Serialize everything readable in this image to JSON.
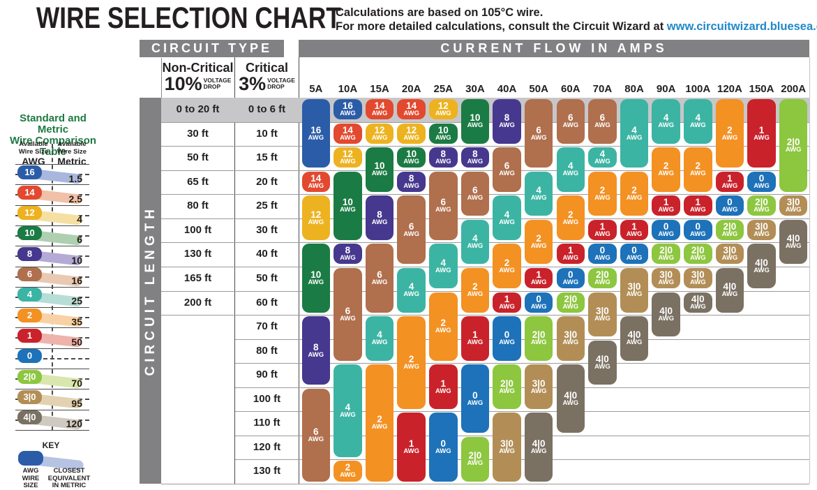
{
  "title": "WIRE SELECTION CHART",
  "note": {
    "line1": "Calculations are based on 105°C wire.",
    "line2_prefix": "For more detailed calculations, consult the Circuit Wizard at ",
    "link": "www.circuitwizard.bluesea.com",
    "link_color": "#2089c9"
  },
  "sidebar": {
    "title_line1": "Standard and Metric",
    "title_line2": "Wire Comparison Table",
    "title_color": "#1e7a43",
    "col1_header_line1": "Available",
    "col1_header_line2": "Wire Size",
    "col1_unit": "AWG",
    "col2_header_line1": "Available",
    "col2_header_line2": "Wire Size",
    "col2_unit": "Metric",
    "rows": [
      {
        "awg": "16",
        "metric": "1.5",
        "color": "#2b5ca8",
        "swash": "#a9b6dd"
      },
      {
        "awg": "14",
        "metric": "2.5",
        "color": "#e2492f",
        "swash": "#f0c0a8"
      },
      {
        "awg": "12",
        "metric": "4",
        "color": "#edb220",
        "swash": "#f6dfa2"
      },
      {
        "awg": "10",
        "metric": "6",
        "color": "#1b7b44",
        "swash": "#aed0b0"
      },
      {
        "awg": "8",
        "metric": "10",
        "color": "#46388e",
        "swash": "#b4aad6"
      },
      {
        "awg": "6",
        "metric": "16",
        "color": "#b06f4d",
        "swash": "#e9c9b2"
      },
      {
        "awg": "4",
        "metric": "25",
        "color": "#3cb4a4",
        "swash": "#b6ded6"
      },
      {
        "awg": "2",
        "metric": "35",
        "color": "#f39123",
        "swash": "#f8d2a4"
      },
      {
        "awg": "1",
        "metric": "50",
        "color": "#c9222b",
        "swash": "#eeb3ab"
      },
      {
        "awg": "0",
        "metric": "",
        "color": "#1d72b9",
        "swash": ""
      },
      {
        "awg": "2|0",
        "metric": "70",
        "color": "#8dc63f",
        "swash": "#d9e6ae"
      },
      {
        "awg": "3|0",
        "metric": "95",
        "color": "#b28e56",
        "swash": "#e3d2b2"
      },
      {
        "awg": "4|0",
        "metric": "120",
        "color": "#7a7163",
        "swash": "#cfcac1"
      }
    ],
    "key": {
      "label": "KEY",
      "pill_color": "#2b5ca8",
      "swash_color": "#b7c3e3",
      "pill_label_line1": "AWG",
      "pill_label_line2": "WIRE",
      "pill_label_line3": "SIZE",
      "swash_label_line1": "CLOSEST",
      "swash_label_line2": "EQUIVALENT",
      "swash_label_line3": "IN METRIC"
    }
  },
  "table": {
    "circuit_type_header": "CIRCUIT TYPE",
    "amps_header": "CURRENT FLOW IN AMPS",
    "noncritical_title": "Non-Critical",
    "noncritical_pct": "10%",
    "critical_title": "Critical",
    "critical_pct": "3%",
    "voltage_word": "VOLTAGE",
    "drop_word": "DROP",
    "circuit_length_label": "CIRCUIT LENGTH"
  },
  "chart_data": {
    "type": "table",
    "title": "WIRE SELECTION CHART",
    "x_axis_label": "CURRENT FLOW IN AMPS",
    "y_axis_label": "CIRCUIT LENGTH",
    "amp_columns": [
      "5A",
      "10A",
      "15A",
      "20A",
      "25A",
      "30A",
      "40A",
      "50A",
      "60A",
      "70A",
      "80A",
      "90A",
      "100A",
      "120A",
      "150A",
      "200A"
    ],
    "length_rows": [
      {
        "noncritical": "0 to 20 ft",
        "critical": "0 to 6 ft"
      },
      {
        "noncritical": "30 ft",
        "critical": "10 ft"
      },
      {
        "noncritical": "50 ft",
        "critical": "15 ft"
      },
      {
        "noncritical": "65 ft",
        "critical": "20 ft"
      },
      {
        "noncritical": "80 ft",
        "critical": "25 ft"
      },
      {
        "noncritical": "100 ft",
        "critical": "30 ft"
      },
      {
        "noncritical": "130 ft",
        "critical": "40 ft"
      },
      {
        "noncritical": "165 ft",
        "critical": "50 ft"
      },
      {
        "noncritical": "200 ft",
        "critical": "60 ft"
      },
      {
        "noncritical": "",
        "critical": "70 ft"
      },
      {
        "noncritical": "",
        "critical": "80 ft"
      },
      {
        "noncritical": "",
        "critical": "90 ft"
      },
      {
        "noncritical": "",
        "critical": "100 ft"
      },
      {
        "noncritical": "",
        "critical": "110 ft"
      },
      {
        "noncritical": "",
        "critical": "120 ft"
      },
      {
        "noncritical": "",
        "critical": "130 ft"
      }
    ],
    "awg_unit": "AWG",
    "awg_colors": {
      "16": "#2b5ca8",
      "14": "#e2492f",
      "12": "#edb220",
      "10": "#1b7b44",
      "8": "#46388e",
      "6": "#b06f4d",
      "4": "#3cb4a4",
      "2": "#f39123",
      "1": "#c9222b",
      "0": "#1d72b9",
      "2|0": "#8dc63f",
      "3|0": "#b28e56",
      "4|0": "#7a7163"
    },
    "recommended_awg": [
      {
        "amps": "5A",
        "pills": [
          {
            "awg": "16",
            "row_start": 1,
            "row_end": 3
          },
          {
            "awg": "14",
            "row_start": 4,
            "row_end": 4
          },
          {
            "awg": "12",
            "row_start": 5,
            "row_end": 6
          },
          {
            "awg": "10",
            "row_start": 7,
            "row_end": 9
          },
          {
            "awg": "8",
            "row_start": 10,
            "row_end": 12
          },
          {
            "awg": "6",
            "row_start": 13,
            "row_end": 16
          }
        ]
      },
      {
        "amps": "10A",
        "pills": [
          {
            "awg": "16",
            "row_start": 1,
            "row_end": 1
          },
          {
            "awg": "14",
            "row_start": 2,
            "row_end": 2
          },
          {
            "awg": "12",
            "row_start": 3,
            "row_end": 3
          },
          {
            "awg": "10",
            "row_start": 4,
            "row_end": 6
          },
          {
            "awg": "8",
            "row_start": 7,
            "row_end": 7
          },
          {
            "awg": "6",
            "row_start": 8,
            "row_end": 11
          },
          {
            "awg": "4",
            "row_start": 12,
            "row_end": 15
          },
          {
            "awg": "2",
            "row_start": 16,
            "row_end": 16
          }
        ]
      },
      {
        "amps": "15A",
        "pills": [
          {
            "awg": "14",
            "row_start": 1,
            "row_end": 1
          },
          {
            "awg": "12",
            "row_start": 2,
            "row_end": 2
          },
          {
            "awg": "10",
            "row_start": 3,
            "row_end": 4
          },
          {
            "awg": "8",
            "row_start": 5,
            "row_end": 6
          },
          {
            "awg": "6",
            "row_start": 7,
            "row_end": 9
          },
          {
            "awg": "4",
            "row_start": 10,
            "row_end": 11
          },
          {
            "awg": "2",
            "row_start": 12,
            "row_end": 16
          }
        ]
      },
      {
        "amps": "20A",
        "pills": [
          {
            "awg": "14",
            "row_start": 1,
            "row_end": 1
          },
          {
            "awg": "12",
            "row_start": 2,
            "row_end": 2
          },
          {
            "awg": "10",
            "row_start": 3,
            "row_end": 3
          },
          {
            "awg": "8",
            "row_start": 4,
            "row_end": 4
          },
          {
            "awg": "6",
            "row_start": 5,
            "row_end": 7
          },
          {
            "awg": "4",
            "row_start": 8,
            "row_end": 9
          },
          {
            "awg": "2",
            "row_start": 10,
            "row_end": 13
          },
          {
            "awg": "1",
            "row_start": 14,
            "row_end": 16
          }
        ]
      },
      {
        "amps": "25A",
        "pills": [
          {
            "awg": "12",
            "row_start": 1,
            "row_end": 1
          },
          {
            "awg": "10",
            "row_start": 2,
            "row_end": 2
          },
          {
            "awg": "8",
            "row_start": 3,
            "row_end": 3
          },
          {
            "awg": "6",
            "row_start": 4,
            "row_end": 6
          },
          {
            "awg": "4",
            "row_start": 7,
            "row_end": 8
          },
          {
            "awg": "2",
            "row_start": 9,
            "row_end": 11
          },
          {
            "awg": "1",
            "row_start": 12,
            "row_end": 13
          },
          {
            "awg": "0",
            "row_start": 14,
            "row_end": 16
          }
        ]
      },
      {
        "amps": "30A",
        "pills": [
          {
            "awg": "10",
            "row_start": 1,
            "row_end": 2
          },
          {
            "awg": "8",
            "row_start": 3,
            "row_end": 3
          },
          {
            "awg": "6",
            "row_start": 4,
            "row_end": 5
          },
          {
            "awg": "4",
            "row_start": 6,
            "row_end": 7
          },
          {
            "awg": "2",
            "row_start": 8,
            "row_end": 9
          },
          {
            "awg": "1",
            "row_start": 10,
            "row_end": 11
          },
          {
            "awg": "0",
            "row_start": 12,
            "row_end": 14
          },
          {
            "awg": "2|0",
            "row_start": 15,
            "row_end": 16
          }
        ]
      },
      {
        "amps": "40A",
        "pills": [
          {
            "awg": "8",
            "row_start": 1,
            "row_end": 2
          },
          {
            "awg": "6",
            "row_start": 3,
            "row_end": 4
          },
          {
            "awg": "4",
            "row_start": 5,
            "row_end": 6
          },
          {
            "awg": "2",
            "row_start": 7,
            "row_end": 8
          },
          {
            "awg": "1",
            "row_start": 9,
            "row_end": 9
          },
          {
            "awg": "0",
            "row_start": 10,
            "row_end": 11
          },
          {
            "awg": "2|0",
            "row_start": 12,
            "row_end": 13
          },
          {
            "awg": "3|0",
            "row_start": 14,
            "row_end": 16
          }
        ]
      },
      {
        "amps": "50A",
        "pills": [
          {
            "awg": "6",
            "row_start": 1,
            "row_end": 3
          },
          {
            "awg": "4",
            "row_start": 4,
            "row_end": 5
          },
          {
            "awg": "2",
            "row_start": 6,
            "row_end": 7
          },
          {
            "awg": "1",
            "row_start": 8,
            "row_end": 8
          },
          {
            "awg": "0",
            "row_start": 9,
            "row_end": 9
          },
          {
            "awg": "2|0",
            "row_start": 10,
            "row_end": 11
          },
          {
            "awg": "3|0",
            "row_start": 12,
            "row_end": 13
          },
          {
            "awg": "4|0",
            "row_start": 14,
            "row_end": 16
          }
        ]
      },
      {
        "amps": "60A",
        "pills": [
          {
            "awg": "6",
            "row_start": 1,
            "row_end": 2
          },
          {
            "awg": "4",
            "row_start": 3,
            "row_end": 4
          },
          {
            "awg": "2",
            "row_start": 5,
            "row_end": 6
          },
          {
            "awg": "1",
            "row_start": 7,
            "row_end": 7
          },
          {
            "awg": "0",
            "row_start": 8,
            "row_end": 8
          },
          {
            "awg": "2|0",
            "row_start": 9,
            "row_end": 9
          },
          {
            "awg": "3|0",
            "row_start": 10,
            "row_end": 11
          },
          {
            "awg": "4|0",
            "row_start": 12,
            "row_end": 14
          }
        ]
      },
      {
        "amps": "70A",
        "pills": [
          {
            "awg": "6",
            "row_start": 1,
            "row_end": 2
          },
          {
            "awg": "4",
            "row_start": 3,
            "row_end": 3
          },
          {
            "awg": "2",
            "row_start": 4,
            "row_end": 5
          },
          {
            "awg": "1",
            "row_start": 6,
            "row_end": 6
          },
          {
            "awg": "0",
            "row_start": 7,
            "row_end": 7
          },
          {
            "awg": "2|0",
            "row_start": 8,
            "row_end": 8
          },
          {
            "awg": "3|0",
            "row_start": 9,
            "row_end": 10
          },
          {
            "awg": "4|0",
            "row_start": 11,
            "row_end": 12
          }
        ]
      },
      {
        "amps": "80A",
        "pills": [
          {
            "awg": "4",
            "row_start": 1,
            "row_end": 3
          },
          {
            "awg": "2",
            "row_start": 4,
            "row_end": 5
          },
          {
            "awg": "1",
            "row_start": 6,
            "row_end": 6
          },
          {
            "awg": "0",
            "row_start": 7,
            "row_end": 7
          },
          {
            "awg": "3|0",
            "row_start": 8,
            "row_end": 9
          },
          {
            "awg": "4|0",
            "row_start": 10,
            "row_end": 11
          }
        ]
      },
      {
        "amps": "90A",
        "pills": [
          {
            "awg": "4",
            "row_start": 1,
            "row_end": 2
          },
          {
            "awg": "2",
            "row_start": 3,
            "row_end": 4
          },
          {
            "awg": "1",
            "row_start": 5,
            "row_end": 5
          },
          {
            "awg": "0",
            "row_start": 6,
            "row_end": 6
          },
          {
            "awg": "2|0",
            "row_start": 7,
            "row_end": 7
          },
          {
            "awg": "3|0",
            "row_start": 8,
            "row_end": 8
          },
          {
            "awg": "4|0",
            "row_start": 9,
            "row_end": 10
          }
        ]
      },
      {
        "amps": "100A",
        "pills": [
          {
            "awg": "4",
            "row_start": 1,
            "row_end": 2
          },
          {
            "awg": "2",
            "row_start": 3,
            "row_end": 4
          },
          {
            "awg": "1",
            "row_start": 5,
            "row_end": 5
          },
          {
            "awg": "0",
            "row_start": 6,
            "row_end": 6
          },
          {
            "awg": "2|0",
            "row_start": 7,
            "row_end": 7
          },
          {
            "awg": "3|0",
            "row_start": 8,
            "row_end": 8
          },
          {
            "awg": "4|0",
            "row_start": 9,
            "row_end": 9
          }
        ]
      },
      {
        "amps": "120A",
        "pills": [
          {
            "awg": "2",
            "row_start": 1,
            "row_end": 3
          },
          {
            "awg": "1",
            "row_start": 4,
            "row_end": 4
          },
          {
            "awg": "0",
            "row_start": 5,
            "row_end": 5
          },
          {
            "awg": "2|0",
            "row_start": 6,
            "row_end": 6
          },
          {
            "awg": "3|0",
            "row_start": 7,
            "row_end": 7
          },
          {
            "awg": "4|0",
            "row_start": 8,
            "row_end": 9
          }
        ]
      },
      {
        "amps": "150A",
        "pills": [
          {
            "awg": "1",
            "row_start": 1,
            "row_end": 3
          },
          {
            "awg": "0",
            "row_start": 4,
            "row_end": 4
          },
          {
            "awg": "2|0",
            "row_start": 5,
            "row_end": 5
          },
          {
            "awg": "3|0",
            "row_start": 6,
            "row_end": 6
          },
          {
            "awg": "4|0",
            "row_start": 7,
            "row_end": 8
          }
        ]
      },
      {
        "amps": "200A",
        "pills": [
          {
            "awg": "2|0",
            "row_start": 1,
            "row_end": 4
          },
          {
            "awg": "3|0",
            "row_start": 5,
            "row_end": 5
          },
          {
            "awg": "4|0",
            "row_start": 6,
            "row_end": 7
          }
        ]
      }
    ]
  }
}
